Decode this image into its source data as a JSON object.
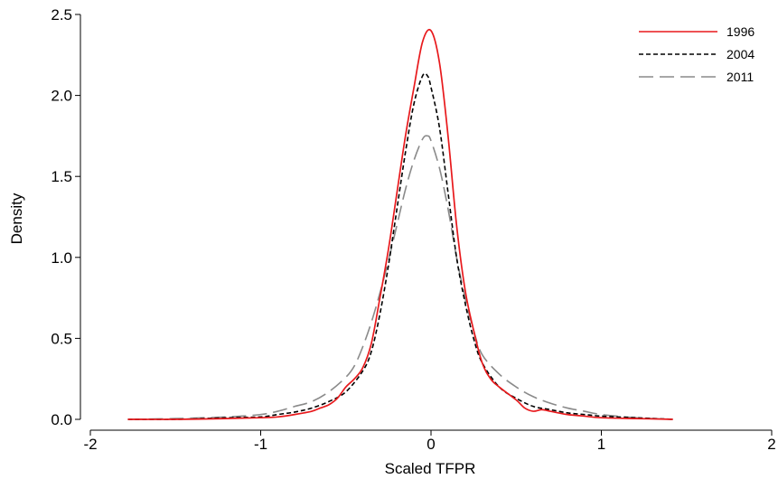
{
  "chart_data": {
    "type": "line",
    "title": "",
    "xlabel": "Scaled TFPR",
    "ylabel": "Density",
    "xlim": [
      -2,
      2
    ],
    "ylim": [
      0,
      2.5
    ],
    "x_ticks": [
      -2,
      -1,
      0,
      1,
      2
    ],
    "x_tick_labels": [
      "-2",
      "-1",
      "0",
      "1",
      "2"
    ],
    "y_ticks": [
      0,
      0.5,
      1.0,
      1.5,
      2.0,
      2.5
    ],
    "y_tick_labels": [
      "0.0",
      "0.5",
      "1.0",
      "1.5",
      "2.0",
      "2.5"
    ],
    "grid": false,
    "legend_position": "top-right",
    "series": [
      {
        "name": "1996",
        "color": "#e8191c",
        "dash": "solid",
        "x": [
          -1.78,
          -1.5,
          -1.2,
          -1.0,
          -0.9,
          -0.8,
          -0.7,
          -0.65,
          -0.6,
          -0.55,
          -0.5,
          -0.45,
          -0.4,
          -0.35,
          -0.3,
          -0.25,
          -0.2,
          -0.15,
          -0.1,
          -0.05,
          0.0,
          0.05,
          0.1,
          0.15,
          0.2,
          0.25,
          0.3,
          0.35,
          0.4,
          0.5,
          0.55,
          0.6,
          0.65,
          0.7,
          0.8,
          0.9,
          1.0,
          1.2,
          1.42
        ],
        "y": [
          0.0,
          0.0,
          0.005,
          0.01,
          0.015,
          0.03,
          0.05,
          0.07,
          0.09,
          0.13,
          0.2,
          0.25,
          0.32,
          0.47,
          0.75,
          1.05,
          1.4,
          1.75,
          2.05,
          2.33,
          2.4,
          2.2,
          1.75,
          1.2,
          0.8,
          0.55,
          0.35,
          0.25,
          0.2,
          0.12,
          0.07,
          0.05,
          0.06,
          0.05,
          0.03,
          0.02,
          0.01,
          0.005,
          0.0
        ]
      },
      {
        "name": "2004",
        "color": "#000000",
        "dash": "short",
        "x": [
          -1.78,
          -1.5,
          -1.2,
          -1.0,
          -0.9,
          -0.8,
          -0.7,
          -0.6,
          -0.5,
          -0.4,
          -0.35,
          -0.3,
          -0.25,
          -0.2,
          -0.15,
          -0.1,
          -0.05,
          -0.02,
          0.0,
          0.05,
          0.1,
          0.15,
          0.2,
          0.25,
          0.3,
          0.4,
          0.5,
          0.6,
          0.7,
          0.8,
          0.9,
          1.0,
          1.2,
          1.42
        ],
        "y": [
          0.0,
          0.0,
          0.01,
          0.015,
          0.03,
          0.045,
          0.07,
          0.11,
          0.17,
          0.3,
          0.42,
          0.65,
          0.95,
          1.3,
          1.65,
          1.95,
          2.12,
          2.12,
          2.05,
          1.8,
          1.4,
          1.0,
          0.72,
          0.5,
          0.35,
          0.2,
          0.13,
          0.08,
          0.06,
          0.04,
          0.03,
          0.02,
          0.01,
          0.0
        ]
      },
      {
        "name": "2011",
        "color": "#8a8a8a",
        "dash": "long",
        "x": [
          -1.78,
          -1.5,
          -1.2,
          -1.0,
          -0.9,
          -0.8,
          -0.7,
          -0.6,
          -0.5,
          -0.45,
          -0.4,
          -0.35,
          -0.3,
          -0.25,
          -0.2,
          -0.15,
          -0.1,
          -0.05,
          -0.02,
          0.0,
          0.05,
          0.1,
          0.15,
          0.2,
          0.25,
          0.3,
          0.4,
          0.5,
          0.6,
          0.7,
          0.8,
          0.9,
          1.0,
          1.2,
          1.42
        ],
        "y": [
          0.0,
          0.005,
          0.015,
          0.03,
          0.05,
          0.08,
          0.11,
          0.17,
          0.26,
          0.33,
          0.45,
          0.6,
          0.78,
          0.98,
          1.2,
          1.42,
          1.6,
          1.73,
          1.75,
          1.72,
          1.55,
          1.3,
          1.0,
          0.75,
          0.55,
          0.4,
          0.28,
          0.2,
          0.14,
          0.1,
          0.07,
          0.05,
          0.03,
          0.01,
          0.0
        ]
      }
    ]
  }
}
